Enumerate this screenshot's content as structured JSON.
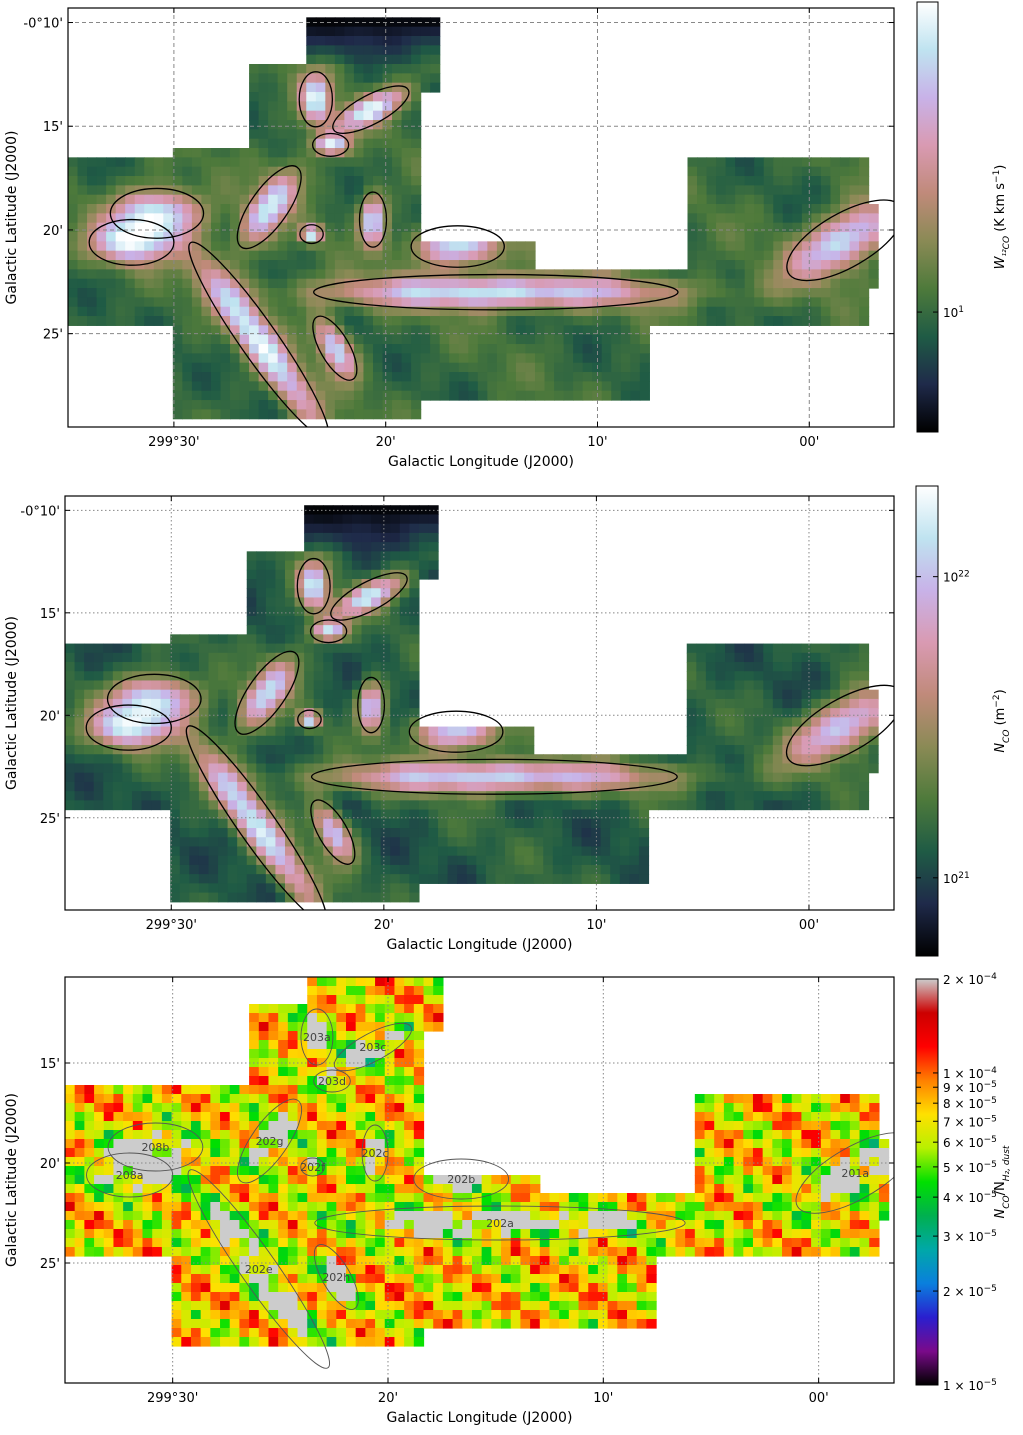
{
  "chart_data": [
    {
      "type": "heatmap",
      "map_quantity": "W_12CO",
      "xlabel": "Galactic Longitude (J2000)",
      "ylabel": "Galactic Latitude (J2000)",
      "xlim_arcmin": [
        35,
        -4
      ],
      "ylim_arcmin": [
        9.3,
        29.5
      ],
      "x_reverse": true,
      "grid": true,
      "grid_style": "dashed",
      "xticks": [
        {
          "v": 30,
          "label": "299°30'"
        },
        {
          "v": 20,
          "label": "20'"
        },
        {
          "v": 10,
          "label": "10'"
        },
        {
          "v": 0,
          "label": "00'"
        }
      ],
      "yticks": [
        {
          "v": 10,
          "label": "-0°10'"
        },
        {
          "v": 15,
          "label": "15'"
        },
        {
          "v": 20,
          "label": "20'"
        },
        {
          "v": 25,
          "label": "25'"
        }
      ],
      "colorbar": {
        "scale": "log",
        "range": [
          5,
          60
        ],
        "label_main": "W",
        "label_sub": "¹²CO",
        "label_unit": " (K km s",
        "label_sup": "−1",
        "label_close": ")",
        "ticks": [
          {
            "v": 10,
            "label": "10",
            "sup": "1"
          }
        ],
        "colormap": "cubehelix",
        "colors": [
          "#000000",
          "#1f2a4a",
          "#1f5b45",
          "#4e7a3b",
          "#8a8a55",
          "#c08a7a",
          "#d99ab2",
          "#c8b2e8",
          "#bfe3f0",
          "#ffffff"
        ]
      }
    },
    {
      "type": "heatmap",
      "map_quantity": "N_CO",
      "xlabel": "Galactic Longitude (J2000)",
      "ylabel": "Galactic Latitude (J2000)",
      "xlim_arcmin": [
        35,
        -4
      ],
      "ylim_arcmin": [
        9.3,
        29.5
      ],
      "x_reverse": true,
      "grid": true,
      "grid_style": "dotted",
      "xticks": [
        {
          "v": 30,
          "label": "299°30'"
        },
        {
          "v": 20,
          "label": "20'"
        },
        {
          "v": 10,
          "label": "10'"
        },
        {
          "v": 0,
          "label": "00'"
        }
      ],
      "yticks": [
        {
          "v": 10,
          "label": "-0°10'"
        },
        {
          "v": 15,
          "label": "15'"
        },
        {
          "v": 20,
          "label": "20'"
        },
        {
          "v": 25,
          "label": "25'"
        }
      ],
      "colorbar": {
        "scale": "log",
        "range": [
          5.5e+20,
          2e+22
        ],
        "label_main": "N",
        "label_sub": "CO",
        "label_unit": " (m",
        "label_sup": "−2",
        "label_close": ")",
        "ticks": [
          {
            "v": 1e+22,
            "label": "10",
            "sup": "22"
          },
          {
            "v": 1e+21,
            "label": "10",
            "sup": "21"
          }
        ],
        "colormap": "cubehelix",
        "colors": [
          "#000000",
          "#1f2a4a",
          "#1f5b45",
          "#4e7a3b",
          "#8a8a55",
          "#c08a7a",
          "#d99ab2",
          "#c8b2e8",
          "#bfe3f0",
          "#ffffff"
        ]
      }
    },
    {
      "type": "heatmap",
      "map_quantity": "N_CO / N_H2,dust",
      "xlabel": "Galactic Longitude (J2000)",
      "ylabel": "Galactic Latitude (J2000)",
      "xlim_arcmin": [
        35,
        -3.5
      ],
      "ylim_arcmin": [
        10.7,
        31.0
      ],
      "x_reverse": true,
      "grid": true,
      "grid_style": "dotted",
      "xticks": [
        {
          "v": 30,
          "label": "299°30'"
        },
        {
          "v": 20,
          "label": "20'"
        },
        {
          "v": 10,
          "label": "10'"
        },
        {
          "v": 0,
          "label": "00'"
        }
      ],
      "yticks": [
        {
          "v": 15,
          "label": "15'"
        },
        {
          "v": 20,
          "label": "20'"
        },
        {
          "v": 25,
          "label": "25'"
        }
      ],
      "colorbar": {
        "scale": "log",
        "range": [
          1e-05,
          0.0002
        ],
        "label_main": "N",
        "label_sub": "CO",
        "label_unit": "/N",
        "label_sub2": "H₂, dust",
        "ticks": [
          {
            "v": 0.0002,
            "label": "2 × 10",
            "sup": "−4"
          },
          {
            "v": 0.0001,
            "label": "1 × 10",
            "sup": "−4"
          },
          {
            "v": 9e-05,
            "label": "9 × 10",
            "sup": "−5"
          },
          {
            "v": 8e-05,
            "label": "8 × 10",
            "sup": "−5"
          },
          {
            "v": 7e-05,
            "label": "7 × 10",
            "sup": "−5"
          },
          {
            "v": 6e-05,
            "label": "6 × 10",
            "sup": "−5"
          },
          {
            "v": 5e-05,
            "label": "5 × 10",
            "sup": "−5"
          },
          {
            "v": 4e-05,
            "label": "4 × 10",
            "sup": "−5"
          },
          {
            "v": 3e-05,
            "label": "3 × 10",
            "sup": "−5"
          },
          {
            "v": 2e-05,
            "label": "2 × 10",
            "sup": "−5"
          },
          {
            "v": 1e-05,
            "label": "1 × 10",
            "sup": "−5"
          }
        ],
        "colormap": "nipy_spectral",
        "colors": [
          "#000000",
          "#7a0a8a",
          "#2a1fcf",
          "#0a7fdd",
          "#00a8a8",
          "#00b050",
          "#00e000",
          "#b8f000",
          "#ffe000",
          "#ff8000",
          "#ff0000",
          "#cc0000",
          "#cccccc"
        ]
      }
    }
  ],
  "ellipses": [
    {
      "id": "201a",
      "l": -1.7,
      "b": 20.5,
      "a": 3.1,
      "bb": 1.3,
      "ang": -30
    },
    {
      "id": "202a",
      "l": 14.8,
      "b": 23.0,
      "a": 8.6,
      "bb": 0.85,
      "ang": 0
    },
    {
      "id": "202b",
      "l": 16.6,
      "b": 20.8,
      "a": 2.2,
      "bb": 1.0,
      "ang": 0
    },
    {
      "id": "202c",
      "l": 20.6,
      "b": 19.5,
      "a": 1.3,
      "bb": 0.65,
      "ang": 90
    },
    {
      "id": "202e",
      "l": 26.0,
      "b": 25.3,
      "a": 5.6,
      "bb": 0.9,
      "ang": 55
    },
    {
      "id": "202f",
      "l": 23.5,
      "b": 20.2,
      "a": 0.55,
      "bb": 0.45,
      "ang": 0
    },
    {
      "id": "202g",
      "l": 25.5,
      "b": 18.9,
      "a": 2.3,
      "bb": 0.9,
      "ang": -55
    },
    {
      "id": "202h",
      "l": 22.4,
      "b": 25.7,
      "a": 1.7,
      "bb": 0.7,
      "ang": 60
    },
    {
      "id": "203a",
      "l": 23.3,
      "b": 13.7,
      "a": 1.3,
      "bb": 0.8,
      "ang": 90
    },
    {
      "id": "203c",
      "l": 20.7,
      "b": 14.2,
      "a": 2.0,
      "bb": 0.7,
      "ang": -28
    },
    {
      "id": "203d",
      "l": 22.6,
      "b": 15.9,
      "a": 0.85,
      "bb": 0.55,
      "ang": 0
    },
    {
      "id": "208a",
      "l": 32.0,
      "b": 20.6,
      "a": 2.0,
      "bb": 1.1,
      "ang": 0
    },
    {
      "id": "208b",
      "l": 30.8,
      "b": 19.2,
      "a": 2.2,
      "bb": 1.2,
      "ang": 0
    }
  ],
  "ellipse_labels_visible": [
    "201a",
    "202a",
    "202b",
    "202c",
    "202e",
    "202f",
    "202g",
    "202h",
    "203a",
    "203c",
    "203d",
    "208a",
    "208b"
  ]
}
